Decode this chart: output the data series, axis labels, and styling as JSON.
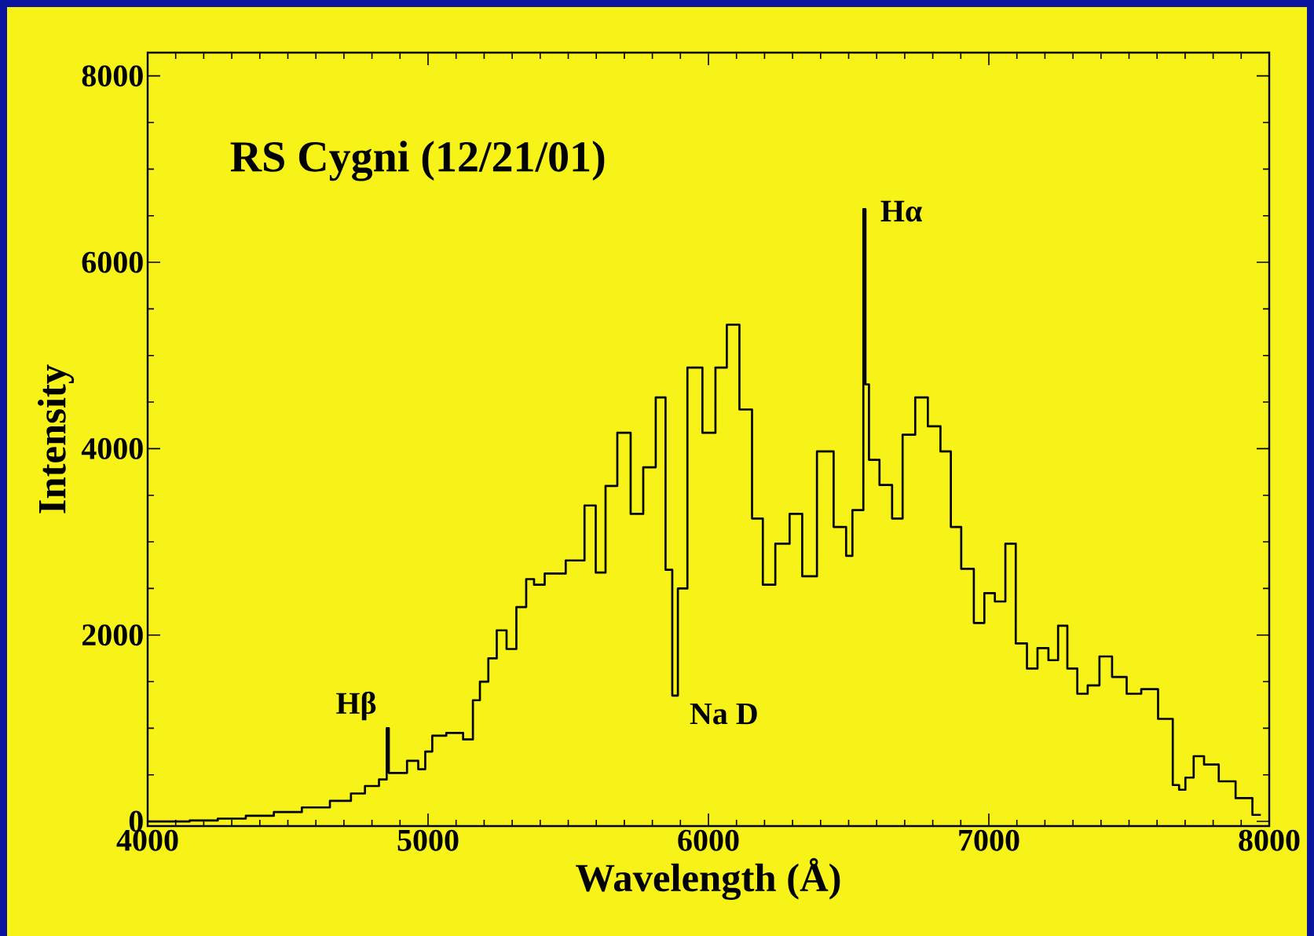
{
  "chart_data": {
    "type": "step",
    "title": "RS Cygni (12/21/01)",
    "xlabel": "Wavelength (Å)",
    "ylabel": "Intensity",
    "x": [
      4000,
      4100,
      4200,
      4300,
      4400,
      4500,
      4600,
      4700,
      4750,
      4800,
      4850,
      4855,
      4865,
      4900,
      4950,
      4980,
      5000,
      5030,
      5100,
      5150,
      5170,
      5200,
      5230,
      5260,
      5300,
      5330,
      5370,
      5386,
      5446,
      5536,
      5580,
      5616,
      5650,
      5700,
      5745,
      5790,
      5834,
      5860,
      5882,
      5900,
      5950,
      6007,
      6043,
      6088,
      6133,
      6178,
      6210,
      6267,
      6312,
      6357,
      6417,
      6476,
      6506,
      6521,
      6550,
      6555,
      6565,
      6580,
      6640,
      6670,
      6715,
      6760,
      6805,
      6850,
      6879,
      6924,
      6969,
      6999,
      7044,
      7074,
      7118,
      7154,
      7193,
      7232,
      7262,
      7298,
      7333,
      7372,
      7417,
      7462,
      7521,
      7566,
      7641,
      7671,
      7686,
      7716,
      7745,
      7790,
      7850,
      7910,
      7970
    ],
    "values": [
      0,
      0,
      10,
      30,
      60,
      100,
      150,
      220,
      300,
      380,
      450,
      1000,
      520,
      520,
      650,
      560,
      750,
      920,
      950,
      880,
      1300,
      1500,
      1750,
      2050,
      1850,
      2300,
      2600,
      2540,
      2660,
      2800,
      3390,
      2670,
      3600,
      4170,
      3300,
      3800,
      4550,
      2700,
      1350,
      2500,
      4870,
      4170,
      4870,
      5330,
      4420,
      3250,
      2540,
      2980,
      3300,
      2630,
      3970,
      3160,
      2850,
      3340,
      3340,
      6570,
      4690,
      3880,
      3610,
      3250,
      4150,
      4550,
      4240,
      3970,
      3160,
      2710,
      2130,
      2450,
      2360,
      2980,
      1910,
      1640,
      1860,
      1730,
      2100,
      1640,
      1370,
      1460,
      1770,
      1550,
      1370,
      1420,
      1100,
      390,
      340,
      470,
      700,
      610,
      430,
      250,
      70
    ],
    "color": "#000000",
    "xlim": [
      4000,
      8000
    ],
    "ylim": [
      -50,
      8250
    ],
    "xticks": [
      4000,
      5000,
      6000,
      7000,
      8000
    ],
    "yticks": [
      0,
      2000,
      4000,
      6000,
      8000
    ],
    "annotations": [
      {
        "text": "Hβ",
        "x": 4860,
        "y": 1000
      },
      {
        "text": "Na D",
        "x": 5882,
        "y": 1350
      },
      {
        "text": "Hα",
        "x": 6555,
        "y": 6570
      }
    ]
  }
}
